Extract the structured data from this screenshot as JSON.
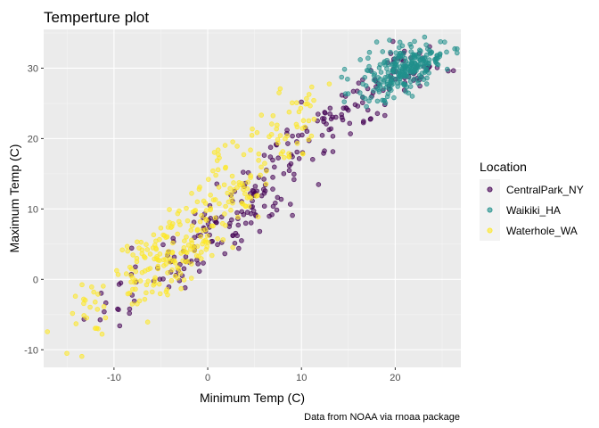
{
  "chart_data": {
    "type": "scatter",
    "title": "Temperture plot",
    "xlabel": "Minimum Temp (C)",
    "ylabel": "Maximum Temp (C)",
    "caption": "Data from NOAA via rnoaa package",
    "xlim": [
      -17.5,
      27
    ],
    "ylim": [
      -12.5,
      35.5
    ],
    "xticks": [
      -10,
      0,
      10,
      20
    ],
    "yticks": [
      -10,
      0,
      10,
      20,
      30
    ],
    "grid": true,
    "legend": {
      "title": "Location",
      "position": "right"
    },
    "series": [
      {
        "name": "CentralPark_NY",
        "color": "#440154",
        "clusters": [
          {
            "cx": -10,
            "cy": -3,
            "n": 15,
            "sx": 1.8,
            "sy": 2.0
          },
          {
            "cx": -4,
            "cy": 2,
            "n": 30,
            "sx": 1.7,
            "sy": 2.2
          },
          {
            "cx": 1,
            "cy": 7,
            "n": 45,
            "sx": 2.0,
            "sy": 2.6
          },
          {
            "cx": 5,
            "cy": 12,
            "n": 50,
            "sx": 2.2,
            "sy": 2.6
          },
          {
            "cx": 10,
            "cy": 19,
            "n": 40,
            "sx": 2.2,
            "sy": 2.4
          },
          {
            "cx": 15,
            "cy": 24,
            "n": 35,
            "sx": 2.2,
            "sy": 2.4
          },
          {
            "cx": 20,
            "cy": 28.5,
            "n": 40,
            "sx": 1.8,
            "sy": 2.0
          },
          {
            "cx": 23.5,
            "cy": 31,
            "n": 15,
            "sx": 1.3,
            "sy": 1.5
          }
        ]
      },
      {
        "name": "Waikiki_HA",
        "color": "#21908C",
        "clusters": [
          {
            "cx": 20.5,
            "cy": 29.5,
            "n": 200,
            "sx": 2.3,
            "sy": 1.9
          },
          {
            "cx": 23,
            "cy": 31.2,
            "n": 60,
            "sx": 1.4,
            "sy": 1.0
          }
        ]
      },
      {
        "name": "Waterhole_WA",
        "color": "#FDE725",
        "clusters": [
          {
            "cx": -13,
            "cy": -5,
            "n": 25,
            "sx": 1.8,
            "sy": 2.8
          },
          {
            "cx": -6,
            "cy": 2,
            "n": 90,
            "sx": 2.0,
            "sy": 2.4
          },
          {
            "cx": -1.5,
            "cy": 6,
            "n": 80,
            "sx": 1.8,
            "sy": 2.8
          },
          {
            "cx": 3,
            "cy": 14,
            "n": 70,
            "sx": 2.0,
            "sy": 3.2
          },
          {
            "cx": 8,
            "cy": 21,
            "n": 35,
            "sx": 1.8,
            "sy": 2.4
          },
          {
            "cx": 11,
            "cy": 25,
            "n": 12,
            "sx": 1.5,
            "sy": 1.8
          }
        ]
      }
    ]
  }
}
